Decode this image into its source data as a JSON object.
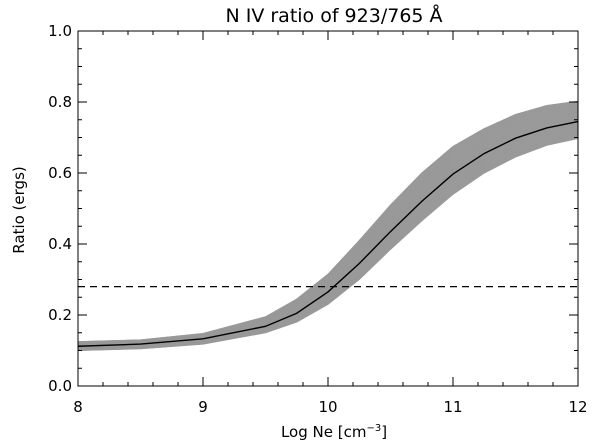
{
  "chart_data": {
    "type": "line",
    "title": "N IV ratio of 923/765 Å",
    "xlabel_main": "Log Ne [cm",
    "xlabel_sup": "−3",
    "xlabel_end": "]",
    "ylabel": "Ratio (ergs)",
    "xlim": [
      8,
      12
    ],
    "ylim": [
      0,
      1.0
    ],
    "x_ticks": [
      8,
      9,
      10,
      11,
      12
    ],
    "x_tick_labels": [
      "8",
      "9",
      "10",
      "11",
      "12"
    ],
    "y_ticks": [
      0,
      0.2,
      0.4,
      0.6,
      0.8,
      1.0
    ],
    "y_tick_labels": [
      "0.0",
      "0.2",
      "0.4",
      "0.6",
      "0.8",
      "1.0"
    ],
    "x_minor_step": 0.2,
    "y_minor_step": 0.05,
    "grid": false,
    "mean_curve": {
      "color": "#000000",
      "x": [
        8.0,
        8.5,
        9.0,
        9.5,
        9.75,
        10.0,
        10.25,
        10.5,
        10.75,
        11.0,
        11.25,
        11.5,
        11.75,
        12.0
      ],
      "y": [
        0.112,
        0.118,
        0.133,
        0.168,
        0.205,
        0.265,
        0.345,
        0.435,
        0.52,
        0.597,
        0.655,
        0.698,
        0.727,
        0.745
      ]
    },
    "ensemble": {
      "color": "#999999",
      "count": 60,
      "upper_y": [
        0.125,
        0.13,
        0.148,
        0.195,
        0.245,
        0.315,
        0.41,
        0.51,
        0.6,
        0.675,
        0.725,
        0.765,
        0.79,
        0.802
      ],
      "lower_y": [
        0.1,
        0.105,
        0.118,
        0.15,
        0.18,
        0.23,
        0.3,
        0.385,
        0.465,
        0.54,
        0.6,
        0.645,
        0.678,
        0.697
      ]
    },
    "threshold_line": {
      "y": 0.28,
      "style": "dashed",
      "color": "#000000"
    }
  }
}
